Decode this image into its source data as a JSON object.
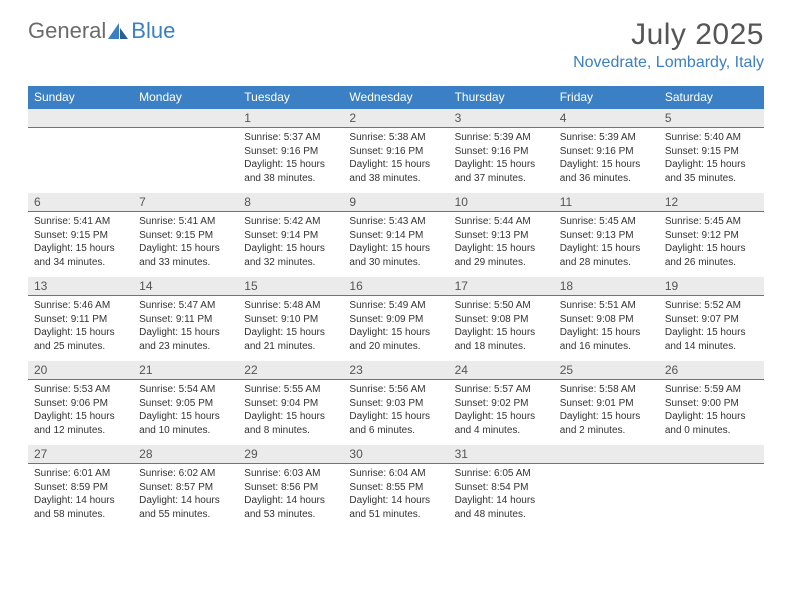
{
  "logo": {
    "text1": "General",
    "text2": "Blue"
  },
  "title": "July 2025",
  "location": "Novedrate, Lombardy, Italy",
  "colors": {
    "header_bg": "#3b7fc4",
    "header_text": "#ffffff",
    "daynum_bg": "#ebebeb",
    "daynum_border": "#3b7fc4",
    "body_text": "#333333",
    "title_text": "#555555",
    "location_text": "#3b7fc4",
    "logo_gray": "#6b6b6b",
    "logo_blue": "#3b7fc4",
    "page_bg": "#ffffff"
  },
  "day_names": [
    "Sunday",
    "Monday",
    "Tuesday",
    "Wednesday",
    "Thursday",
    "Friday",
    "Saturday"
  ],
  "weeks": [
    [
      null,
      null,
      {
        "n": "1",
        "sr": "Sunrise: 5:37 AM",
        "ss": "Sunset: 9:16 PM",
        "dl": "Daylight: 15 hours and 38 minutes."
      },
      {
        "n": "2",
        "sr": "Sunrise: 5:38 AM",
        "ss": "Sunset: 9:16 PM",
        "dl": "Daylight: 15 hours and 38 minutes."
      },
      {
        "n": "3",
        "sr": "Sunrise: 5:39 AM",
        "ss": "Sunset: 9:16 PM",
        "dl": "Daylight: 15 hours and 37 minutes."
      },
      {
        "n": "4",
        "sr": "Sunrise: 5:39 AM",
        "ss": "Sunset: 9:16 PM",
        "dl": "Daylight: 15 hours and 36 minutes."
      },
      {
        "n": "5",
        "sr": "Sunrise: 5:40 AM",
        "ss": "Sunset: 9:15 PM",
        "dl": "Daylight: 15 hours and 35 minutes."
      }
    ],
    [
      {
        "n": "6",
        "sr": "Sunrise: 5:41 AM",
        "ss": "Sunset: 9:15 PM",
        "dl": "Daylight: 15 hours and 34 minutes."
      },
      {
        "n": "7",
        "sr": "Sunrise: 5:41 AM",
        "ss": "Sunset: 9:15 PM",
        "dl": "Daylight: 15 hours and 33 minutes."
      },
      {
        "n": "8",
        "sr": "Sunrise: 5:42 AM",
        "ss": "Sunset: 9:14 PM",
        "dl": "Daylight: 15 hours and 32 minutes."
      },
      {
        "n": "9",
        "sr": "Sunrise: 5:43 AM",
        "ss": "Sunset: 9:14 PM",
        "dl": "Daylight: 15 hours and 30 minutes."
      },
      {
        "n": "10",
        "sr": "Sunrise: 5:44 AM",
        "ss": "Sunset: 9:13 PM",
        "dl": "Daylight: 15 hours and 29 minutes."
      },
      {
        "n": "11",
        "sr": "Sunrise: 5:45 AM",
        "ss": "Sunset: 9:13 PM",
        "dl": "Daylight: 15 hours and 28 minutes."
      },
      {
        "n": "12",
        "sr": "Sunrise: 5:45 AM",
        "ss": "Sunset: 9:12 PM",
        "dl": "Daylight: 15 hours and 26 minutes."
      }
    ],
    [
      {
        "n": "13",
        "sr": "Sunrise: 5:46 AM",
        "ss": "Sunset: 9:11 PM",
        "dl": "Daylight: 15 hours and 25 minutes."
      },
      {
        "n": "14",
        "sr": "Sunrise: 5:47 AM",
        "ss": "Sunset: 9:11 PM",
        "dl": "Daylight: 15 hours and 23 minutes."
      },
      {
        "n": "15",
        "sr": "Sunrise: 5:48 AM",
        "ss": "Sunset: 9:10 PM",
        "dl": "Daylight: 15 hours and 21 minutes."
      },
      {
        "n": "16",
        "sr": "Sunrise: 5:49 AM",
        "ss": "Sunset: 9:09 PM",
        "dl": "Daylight: 15 hours and 20 minutes."
      },
      {
        "n": "17",
        "sr": "Sunrise: 5:50 AM",
        "ss": "Sunset: 9:08 PM",
        "dl": "Daylight: 15 hours and 18 minutes."
      },
      {
        "n": "18",
        "sr": "Sunrise: 5:51 AM",
        "ss": "Sunset: 9:08 PM",
        "dl": "Daylight: 15 hours and 16 minutes."
      },
      {
        "n": "19",
        "sr": "Sunrise: 5:52 AM",
        "ss": "Sunset: 9:07 PM",
        "dl": "Daylight: 15 hours and 14 minutes."
      }
    ],
    [
      {
        "n": "20",
        "sr": "Sunrise: 5:53 AM",
        "ss": "Sunset: 9:06 PM",
        "dl": "Daylight: 15 hours and 12 minutes."
      },
      {
        "n": "21",
        "sr": "Sunrise: 5:54 AM",
        "ss": "Sunset: 9:05 PM",
        "dl": "Daylight: 15 hours and 10 minutes."
      },
      {
        "n": "22",
        "sr": "Sunrise: 5:55 AM",
        "ss": "Sunset: 9:04 PM",
        "dl": "Daylight: 15 hours and 8 minutes."
      },
      {
        "n": "23",
        "sr": "Sunrise: 5:56 AM",
        "ss": "Sunset: 9:03 PM",
        "dl": "Daylight: 15 hours and 6 minutes."
      },
      {
        "n": "24",
        "sr": "Sunrise: 5:57 AM",
        "ss": "Sunset: 9:02 PM",
        "dl": "Daylight: 15 hours and 4 minutes."
      },
      {
        "n": "25",
        "sr": "Sunrise: 5:58 AM",
        "ss": "Sunset: 9:01 PM",
        "dl": "Daylight: 15 hours and 2 minutes."
      },
      {
        "n": "26",
        "sr": "Sunrise: 5:59 AM",
        "ss": "Sunset: 9:00 PM",
        "dl": "Daylight: 15 hours and 0 minutes."
      }
    ],
    [
      {
        "n": "27",
        "sr": "Sunrise: 6:01 AM",
        "ss": "Sunset: 8:59 PM",
        "dl": "Daylight: 14 hours and 58 minutes."
      },
      {
        "n": "28",
        "sr": "Sunrise: 6:02 AM",
        "ss": "Sunset: 8:57 PM",
        "dl": "Daylight: 14 hours and 55 minutes."
      },
      {
        "n": "29",
        "sr": "Sunrise: 6:03 AM",
        "ss": "Sunset: 8:56 PM",
        "dl": "Daylight: 14 hours and 53 minutes."
      },
      {
        "n": "30",
        "sr": "Sunrise: 6:04 AM",
        "ss": "Sunset: 8:55 PM",
        "dl": "Daylight: 14 hours and 51 minutes."
      },
      {
        "n": "31",
        "sr": "Sunrise: 6:05 AM",
        "ss": "Sunset: 8:54 PM",
        "dl": "Daylight: 14 hours and 48 minutes."
      },
      null,
      null
    ]
  ]
}
